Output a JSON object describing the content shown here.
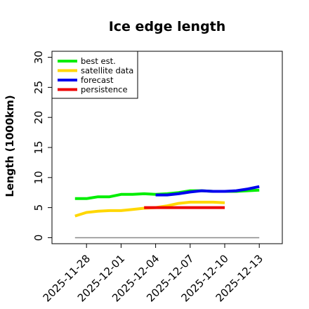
{
  "chart_data": {
    "type": "line",
    "title": "Ice edge length",
    "ylabel": "Length (1000km)",
    "xlabel": "",
    "ylim": [
      -1,
      31
    ],
    "yticks": [
      0,
      5,
      10,
      15,
      20,
      25,
      30
    ],
    "x_start": "2025-11-25",
    "xlim": [
      "2025-11-25",
      "2025-12-15"
    ],
    "xtick_labels": [
      "2025-11-28",
      "2025-12-01",
      "2025-12-04",
      "2025-12-07",
      "2025-12-10",
      "2025-12-13"
    ],
    "highlighted_tick": "2025-12-04",
    "highlight_color": "#1a8a1a",
    "legend_position": "top-left",
    "series": [
      {
        "name": "best est.",
        "color": "#00ee00",
        "x": [
          "2025-11-27",
          "2025-11-28",
          "2025-11-29",
          "2025-11-30",
          "2025-12-01",
          "2025-12-02",
          "2025-12-03",
          "2025-12-04",
          "2025-12-05",
          "2025-12-06",
          "2025-12-07",
          "2025-12-08",
          "2025-12-09",
          "2025-12-10",
          "2025-12-11",
          "2025-12-12",
          "2025-12-13"
        ],
        "y": [
          6.5,
          6.5,
          6.8,
          6.8,
          7.2,
          7.2,
          7.3,
          7.2,
          7.3,
          7.5,
          7.8,
          7.8,
          7.7,
          7.7,
          7.7,
          7.8,
          7.9
        ]
      },
      {
        "name": "satellite data",
        "color": "#ffd700",
        "x": [
          "2025-11-27",
          "2025-11-28",
          "2025-11-29",
          "2025-11-30",
          "2025-12-01",
          "2025-12-02",
          "2025-12-03",
          "2025-12-04",
          "2025-12-05",
          "2025-12-06",
          "2025-12-07",
          "2025-12-08",
          "2025-12-09",
          "2025-12-10"
        ],
        "y": [
          3.6,
          4.2,
          4.4,
          4.5,
          4.5,
          4.7,
          4.9,
          5.0,
          5.3,
          5.7,
          5.9,
          5.9,
          5.9,
          5.8
        ]
      },
      {
        "name": "forecast",
        "color": "#0000ee",
        "x": [
          "2025-12-04",
          "2025-12-05",
          "2025-12-06",
          "2025-12-07",
          "2025-12-08",
          "2025-12-09",
          "2025-12-10",
          "2025-12-11",
          "2025-12-12",
          "2025-12-13"
        ],
        "y": [
          7.1,
          7.1,
          7.3,
          7.6,
          7.8,
          7.7,
          7.7,
          7.8,
          8.1,
          8.5
        ]
      },
      {
        "name": "persistence",
        "color": "#ee0000",
        "x": [
          "2025-12-03",
          "2025-12-10"
        ],
        "y": [
          5.0,
          5.0
        ]
      }
    ],
    "baseline": {
      "y": 0,
      "x_from": "2025-11-27",
      "x_to": "2025-12-13",
      "color": "#888888"
    }
  }
}
